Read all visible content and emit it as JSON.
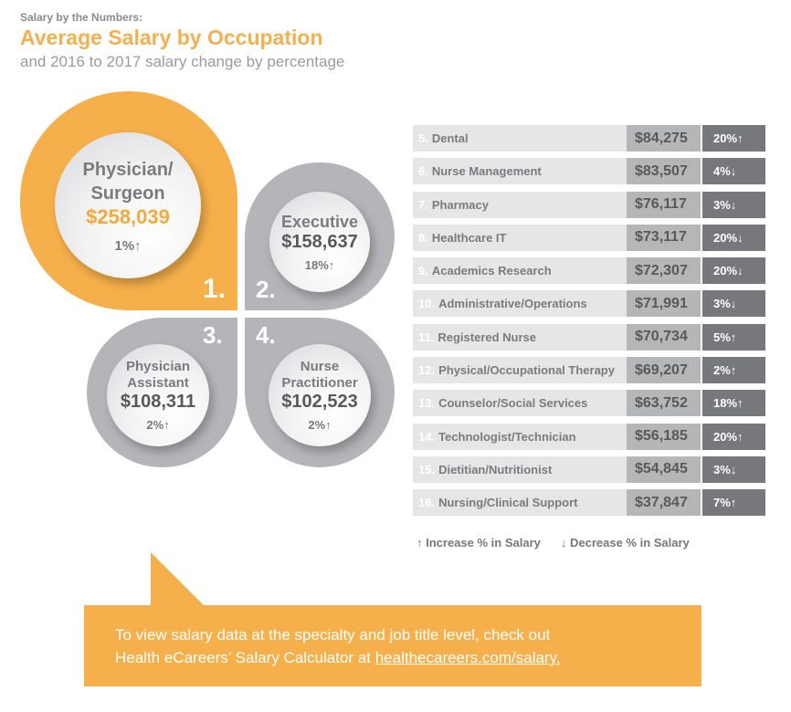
{
  "header": {
    "kicker": "Salary by the Numbers:",
    "title": "Average Salary by Occupation",
    "subtitle": "and 2016 to 2017 salary change by percentage"
  },
  "colors": {
    "accent": "#f6b04b",
    "petal_gray": "#b4b5b8",
    "row_bg": "#e6e6e7",
    "salary_cell": "#b5b6b8",
    "change_cell": "#77787b"
  },
  "chart_data": {
    "type": "table",
    "top": [
      {
        "rank": "1.",
        "name_lines": [
          "Physician/",
          "Surgeon"
        ],
        "salary": "$258,039",
        "change": "1%↑"
      },
      {
        "rank": "2.",
        "name_lines": [
          "Executive"
        ],
        "salary": "$158,637",
        "change": "18%↑"
      },
      {
        "rank": "3.",
        "name_lines": [
          "Physician",
          "Assistant"
        ],
        "salary": "$108,311",
        "change": "2%↑"
      },
      {
        "rank": "4.",
        "name_lines": [
          "Nurse",
          "Practitioner"
        ],
        "salary": "$102,523",
        "change": "2%↑"
      }
    ],
    "rows": [
      {
        "rank": "5.",
        "name": "Dental",
        "salary": "$84,275",
        "change": "20%↑"
      },
      {
        "rank": "6.",
        "name": "Nurse Management",
        "salary": "$83,507",
        "change": "4%↓"
      },
      {
        "rank": "7.",
        "name": "Pharmacy",
        "salary": "$76,117",
        "change": "3%↓"
      },
      {
        "rank": "8.",
        "name": "Healthcare IT",
        "salary": "$73,117",
        "change": "20%↓"
      },
      {
        "rank": "9.",
        "name": "Academics Research",
        "salary": "$72,307",
        "change": "20%↓"
      },
      {
        "rank": "10.",
        "name": "Administrative/Operations",
        "salary": "$71,991",
        "change": "3%↓"
      },
      {
        "rank": "11.",
        "name": "Registered Nurse",
        "salary": "$70,734",
        "change": "5%↑"
      },
      {
        "rank": "12.",
        "name": "Physical/Occupational Therapy",
        "salary": "$69,207",
        "change": "2%↑"
      },
      {
        "rank": "13.",
        "name": "Counselor/Social Services",
        "salary": "$63,752",
        "change": "18%↑"
      },
      {
        "rank": "14.",
        "name": "Technologist/Technician",
        "salary": "$56,185",
        "change": "20%↑"
      },
      {
        "rank": "15.",
        "name": "Dietitian/Nutritionist",
        "salary": "$54,845",
        "change": "3%↓"
      },
      {
        "rank": "16.",
        "name": "Nursing/Clinical Support",
        "salary": "$37,847",
        "change": "7%↑"
      }
    ]
  },
  "legend": {
    "increase": "↑ Increase % in Salary",
    "decrease": "↓ Decrease % in Salary"
  },
  "callout": {
    "line1": "To view salary data at the specialty and job title level, check out",
    "line2_prefix": "Health eCareers’ Salary Calculator at ",
    "link": "healthecareers.com/salary."
  }
}
